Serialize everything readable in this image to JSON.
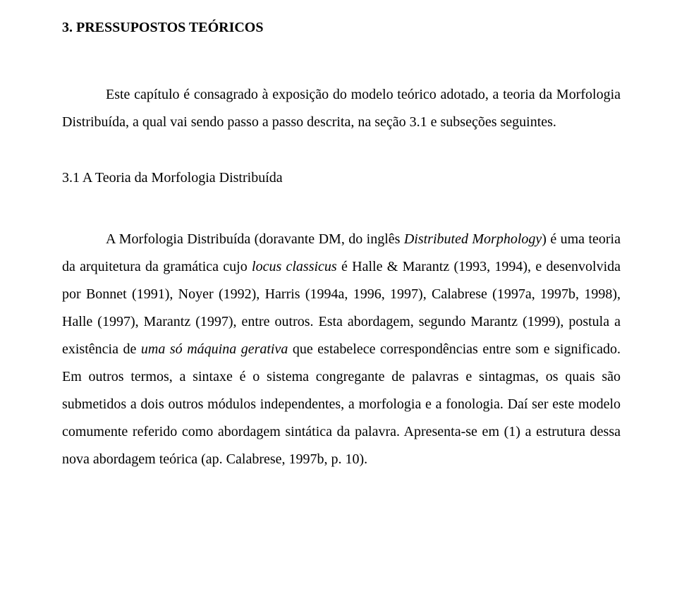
{
  "section": {
    "number": "3.",
    "title": "PRESSUPOSTOS TEÓRICOS"
  },
  "intro_paragraph": "Este capítulo é consagrado à exposição do modelo teórico adotado, a teoria da Morfologia Distribuída, a qual vai sendo passo a passo descrita, na seção 3.1 e subseções seguintes.",
  "subsection": {
    "number": "3.1",
    "title": "A Teoria da Morfologia Distribuída"
  },
  "body": {
    "t1": "A Morfologia Distribuída (doravante DM, do inglês ",
    "i1": "Distributed Morphology",
    "t2": ") é uma teoria da arquitetura da gramática cujo ",
    "i2": "locus classicus",
    "t3": " é Halle & Marantz (1993, 1994), e desenvolvida por Bonnet (1991), Noyer (1992), Harris (1994a, 1996, 1997), Calabrese (1997a, 1997b, 1998), Halle (1997), Marantz (1997), entre outros. Esta abordagem, segundo Marantz (1999), postula a existência de ",
    "i3": "uma só máquina gerativa",
    "t4": " que estabelece correspondências entre som e significado. Em outros termos, a sintaxe é o sistema congregante de palavras e sintagmas, os quais são submetidos a dois outros módulos independentes, a morfologia e a fonologia. Daí ser este modelo comumente referido como abordagem sintática da palavra. Apresenta-se em (1) a estrutura dessa nova abordagem teórica (ap. Calabrese, 1997b, p. 10)."
  }
}
